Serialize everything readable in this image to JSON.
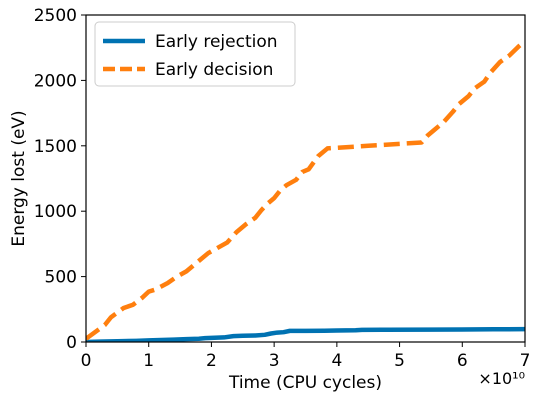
{
  "chart_data": {
    "type": "line",
    "title": "",
    "xlabel": "Time (CPU cycles)",
    "ylabel": "Energy lost (eV)",
    "x_scale_label": "×10¹⁰",
    "xlim": [
      0,
      7
    ],
    "ylim": [
      0,
      2500
    ],
    "xticks": [
      0,
      1,
      2,
      3,
      4,
      5,
      6,
      7
    ],
    "yticks": [
      0,
      500,
      1000,
      1500,
      2000,
      2500
    ],
    "xtick_labels": [
      "0",
      "1",
      "2",
      "3",
      "4",
      "5",
      "6",
      "7"
    ],
    "ytick_labels": [
      "0",
      "500",
      "1000",
      "1500",
      "2000",
      "2500"
    ],
    "grid": false,
    "legend_position": "top-left",
    "series": [
      {
        "name": "Early rejection",
        "color": "#0072b2",
        "style": "solid",
        "points": [
          [
            0,
            0
          ],
          [
            0.2,
            3
          ],
          [
            0.5,
            6
          ],
          [
            0.8,
            9
          ],
          [
            1.0,
            12
          ],
          [
            1.2,
            15
          ],
          [
            1.4,
            18
          ],
          [
            1.6,
            22
          ],
          [
            1.8,
            25
          ],
          [
            1.9,
            30
          ],
          [
            2.1,
            33
          ],
          [
            2.2,
            35
          ],
          [
            2.35,
            45
          ],
          [
            2.5,
            48
          ],
          [
            2.7,
            50
          ],
          [
            2.85,
            55
          ],
          [
            2.95,
            65
          ],
          [
            3.05,
            72
          ],
          [
            3.15,
            75
          ],
          [
            3.25,
            85
          ],
          [
            3.5,
            85
          ],
          [
            3.8,
            86
          ],
          [
            4.0,
            88
          ],
          [
            4.3,
            90
          ],
          [
            4.4,
            93
          ],
          [
            4.8,
            94
          ],
          [
            5.5,
            95
          ],
          [
            6.0,
            96
          ],
          [
            6.5,
            97
          ],
          [
            7.0,
            98
          ]
        ]
      },
      {
        "name": "Early decision",
        "color": "#ff7f0e",
        "style": "dashed",
        "points": [
          [
            0,
            25
          ],
          [
            0.1,
            60
          ],
          [
            0.3,
            130
          ],
          [
            0.4,
            190
          ],
          [
            0.6,
            260
          ],
          [
            0.75,
            285
          ],
          [
            0.9,
            340
          ],
          [
            1.0,
            385
          ],
          [
            1.1,
            400
          ],
          [
            1.3,
            450
          ],
          [
            1.45,
            500
          ],
          [
            1.6,
            540
          ],
          [
            1.8,
            620
          ],
          [
            1.95,
            680
          ],
          [
            2.1,
            720
          ],
          [
            2.25,
            760
          ],
          [
            2.4,
            840
          ],
          [
            2.55,
            900
          ],
          [
            2.7,
            950
          ],
          [
            2.8,
            1010
          ],
          [
            2.9,
            1060
          ],
          [
            3.0,
            1100
          ],
          [
            3.1,
            1160
          ],
          [
            3.2,
            1200
          ],
          [
            3.35,
            1240
          ],
          [
            3.45,
            1300
          ],
          [
            3.55,
            1320
          ],
          [
            3.7,
            1420
          ],
          [
            3.85,
            1480
          ],
          [
            4.0,
            1485
          ],
          [
            4.5,
            1500
          ],
          [
            5.0,
            1515
          ],
          [
            5.35,
            1525
          ],
          [
            5.45,
            1580
          ],
          [
            5.55,
            1620
          ],
          [
            5.7,
            1680
          ],
          [
            5.85,
            1760
          ],
          [
            5.95,
            1820
          ],
          [
            6.1,
            1880
          ],
          [
            6.2,
            1940
          ],
          [
            6.35,
            1990
          ],
          [
            6.45,
            2060
          ],
          [
            6.6,
            2140
          ],
          [
            6.75,
            2190
          ],
          [
            6.9,
            2260
          ],
          [
            7.0,
            2300
          ]
        ]
      }
    ]
  }
}
